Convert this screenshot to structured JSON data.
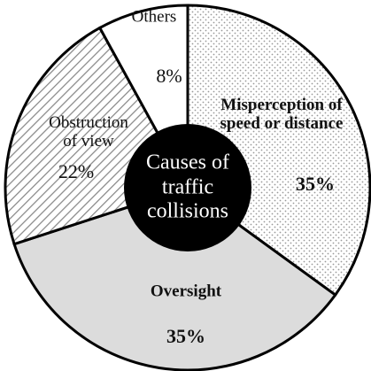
{
  "chart_data": {
    "type": "donut",
    "title": "Causes of traffic collisions",
    "categories": [
      "Misperception of speed or distance",
      "Oversight",
      "Obstruction of view",
      "Others"
    ],
    "values": [
      35,
      35,
      22,
      8
    ],
    "value_labels": [
      "35%",
      "35%",
      "22%",
      "8%"
    ],
    "colors": [
      "#ffffff",
      "#dcdcdc",
      "#ffffff",
      "#ffffff"
    ],
    "patterns": [
      "dots",
      "none",
      "hatch",
      "none"
    ],
    "bold": [
      true,
      true,
      false,
      false
    ],
    "center_color": "#000000"
  }
}
